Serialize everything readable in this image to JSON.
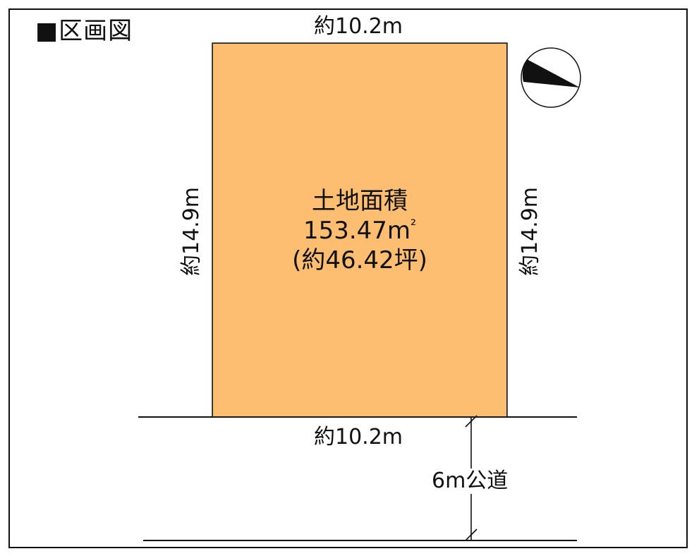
{
  "title": "■区画図",
  "lot": {
    "heading": "土地面積",
    "area_value": "153.47m",
    "area_unit_sup": "²",
    "area_tsubo": "(約46.42坪)",
    "fill_color": "#FDBE72"
  },
  "dimensions": {
    "top": "約10.2m",
    "bottom": "約10.2m",
    "left": "約14.9m",
    "right": "約14.9m"
  },
  "road": {
    "label": "6m公道"
  },
  "compass": {
    "icon": "north-arrow-compass-icon"
  }
}
